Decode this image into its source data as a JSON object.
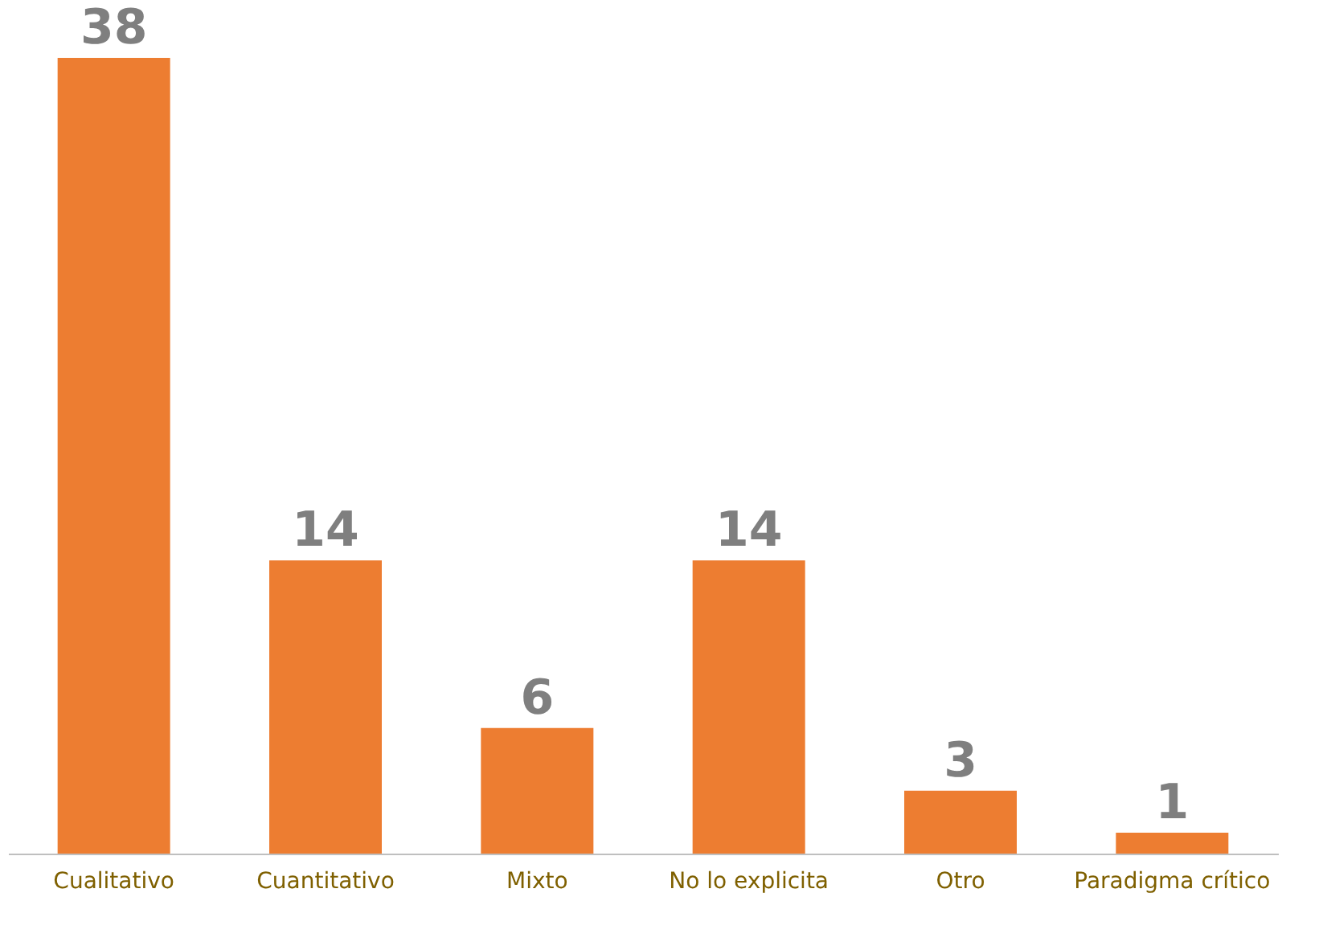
{
  "chart_data": {
    "type": "bar",
    "categories": [
      "Cualitativo",
      "Cuantitativo",
      "Mixto",
      "No lo explicita",
      "Otro",
      "Paradigma crítico"
    ],
    "values": [
      38,
      14,
      6,
      14,
      3,
      1
    ],
    "color": "#ed7d31",
    "data_labels": true,
    "grid": false,
    "tick_labels": "x"
  }
}
